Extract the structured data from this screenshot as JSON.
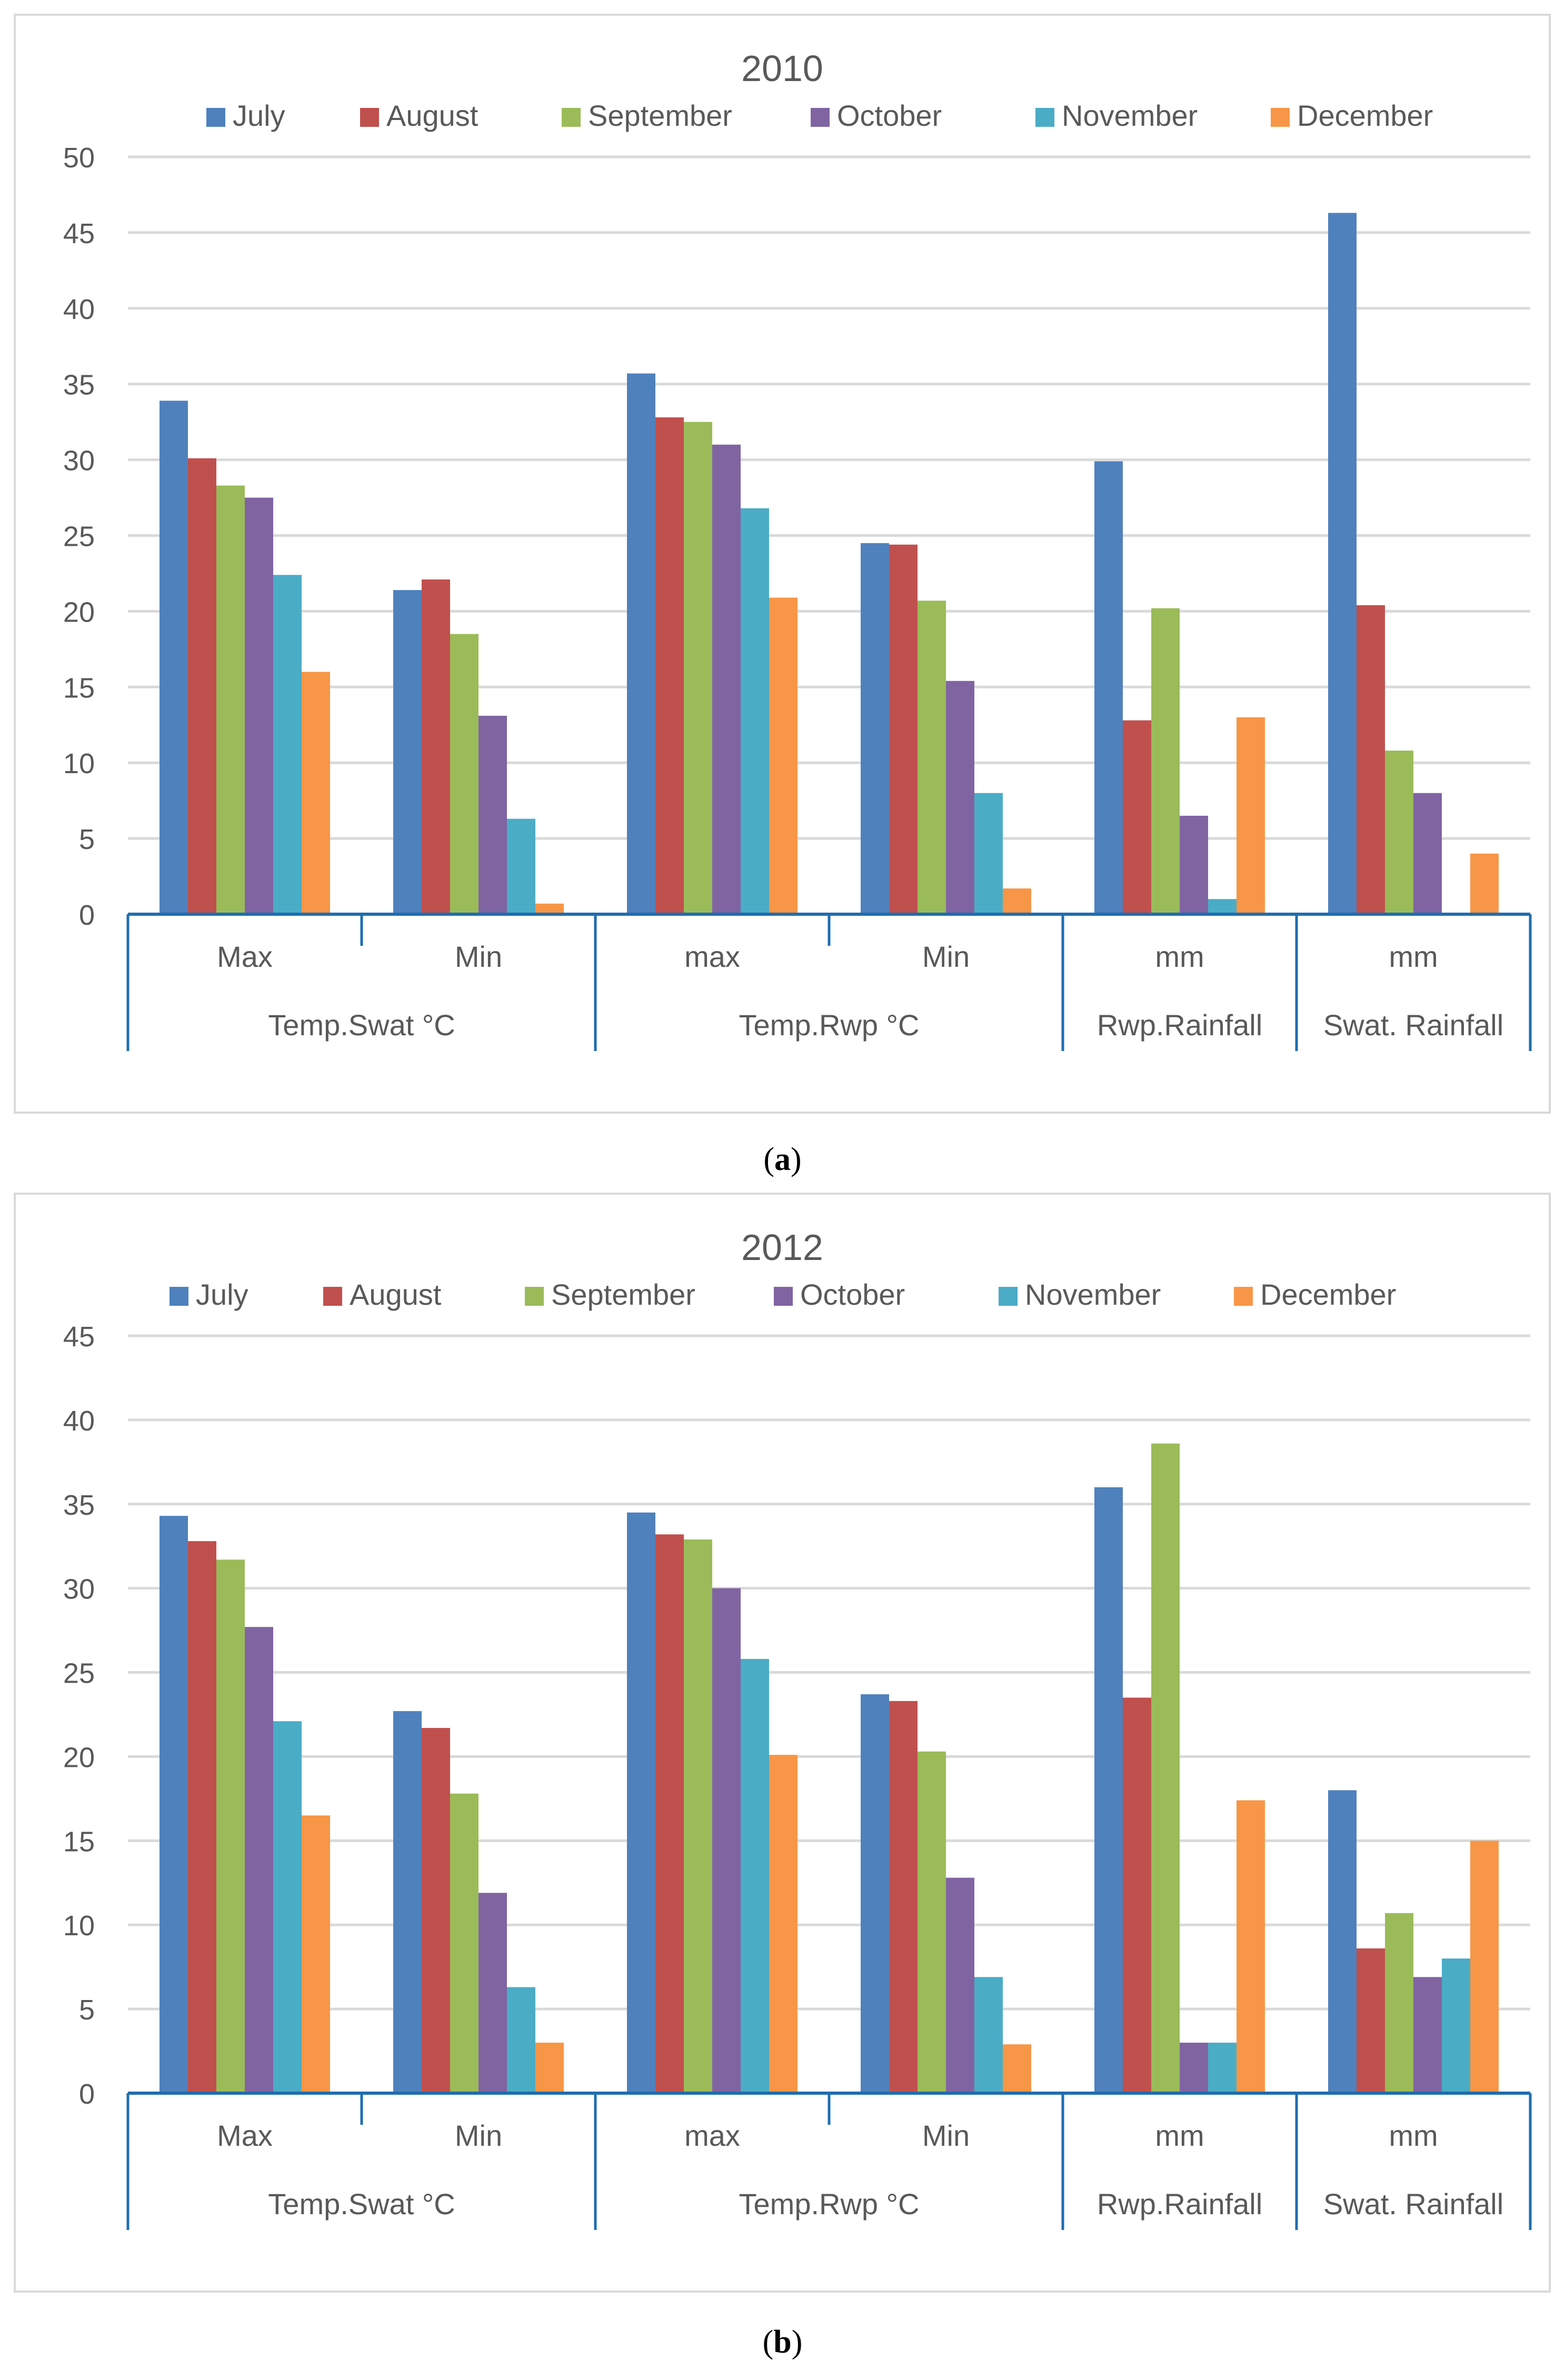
{
  "chart_data": [
    {
      "type": "bar",
      "title": "2010",
      "panel_label": "a",
      "series_names": [
        "July",
        "August",
        "September",
        "October",
        "November",
        "December"
      ],
      "series_colors": [
        "#4f81bd",
        "#c0504d",
        "#9bbb59",
        "#8064a2",
        "#4bacc6",
        "#f79646"
      ],
      "categories": [
        "Max",
        "Min",
        "max",
        "Min",
        "mm",
        "mm"
      ],
      "groups": [
        {
          "label": "Temp.Swat °C",
          "span": 2
        },
        {
          "label": "Temp.Rwp °C",
          "span": 2
        },
        {
          "label": "Rwp.Rainfall",
          "span": 1
        },
        {
          "label": "Swat. Rainfall",
          "span": 1
        }
      ],
      "values": [
        [
          33.9,
          30.1,
          28.3,
          27.5,
          22.4,
          16.0
        ],
        [
          21.4,
          22.1,
          18.5,
          13.1,
          6.3,
          0.7
        ],
        [
          35.7,
          32.8,
          32.5,
          31.0,
          26.8,
          20.9
        ],
        [
          24.5,
          24.4,
          20.7,
          15.4,
          8.0,
          1.7
        ],
        [
          29.9,
          12.8,
          20.2,
          6.5,
          1.0,
          13.0
        ],
        [
          46.3,
          20.4,
          10.8,
          8.0,
          0,
          4.0
        ]
      ],
      "ylim": [
        0,
        50
      ],
      "ytick_step": 5,
      "yticks": [
        "0",
        "5",
        "10",
        "15",
        "20",
        "25",
        "30",
        "35",
        "40",
        "45",
        "50"
      ]
    },
    {
      "type": "bar",
      "title": "2012",
      "panel_label": "b",
      "series_names": [
        "July",
        "August",
        "September",
        "October",
        "November",
        "December"
      ],
      "series_colors": [
        "#4f81bd",
        "#c0504d",
        "#9bbb59",
        "#8064a2",
        "#4bacc6",
        "#f79646"
      ],
      "categories": [
        "Max",
        "Min",
        "max",
        "Min",
        "mm",
        "mm"
      ],
      "groups": [
        {
          "label": "Temp.Swat °C",
          "span": 2
        },
        {
          "label": "Temp.Rwp °C",
          "span": 2
        },
        {
          "label": "Rwp.Rainfall",
          "span": 1
        },
        {
          "label": "Swat. Rainfall",
          "span": 1
        }
      ],
      "values": [
        [
          34.3,
          32.8,
          31.7,
          27.7,
          22.1,
          16.5
        ],
        [
          22.7,
          21.7,
          17.8,
          11.9,
          6.3,
          3.0
        ],
        [
          34.5,
          33.2,
          32.9,
          30.0,
          25.8,
          20.1
        ],
        [
          23.7,
          23.3,
          20.3,
          12.8,
          6.9,
          2.9
        ],
        [
          36.0,
          23.5,
          38.6,
          3.0,
          3.0,
          17.4
        ],
        [
          18.0,
          8.6,
          10.7,
          6.9,
          8.0,
          15.0
        ]
      ],
      "ylim": [
        0,
        45
      ],
      "ytick_step": 5,
      "yticks": [
        "0",
        "5",
        "10",
        "15",
        "20",
        "25",
        "30",
        "35",
        "40",
        "45"
      ]
    }
  ]
}
